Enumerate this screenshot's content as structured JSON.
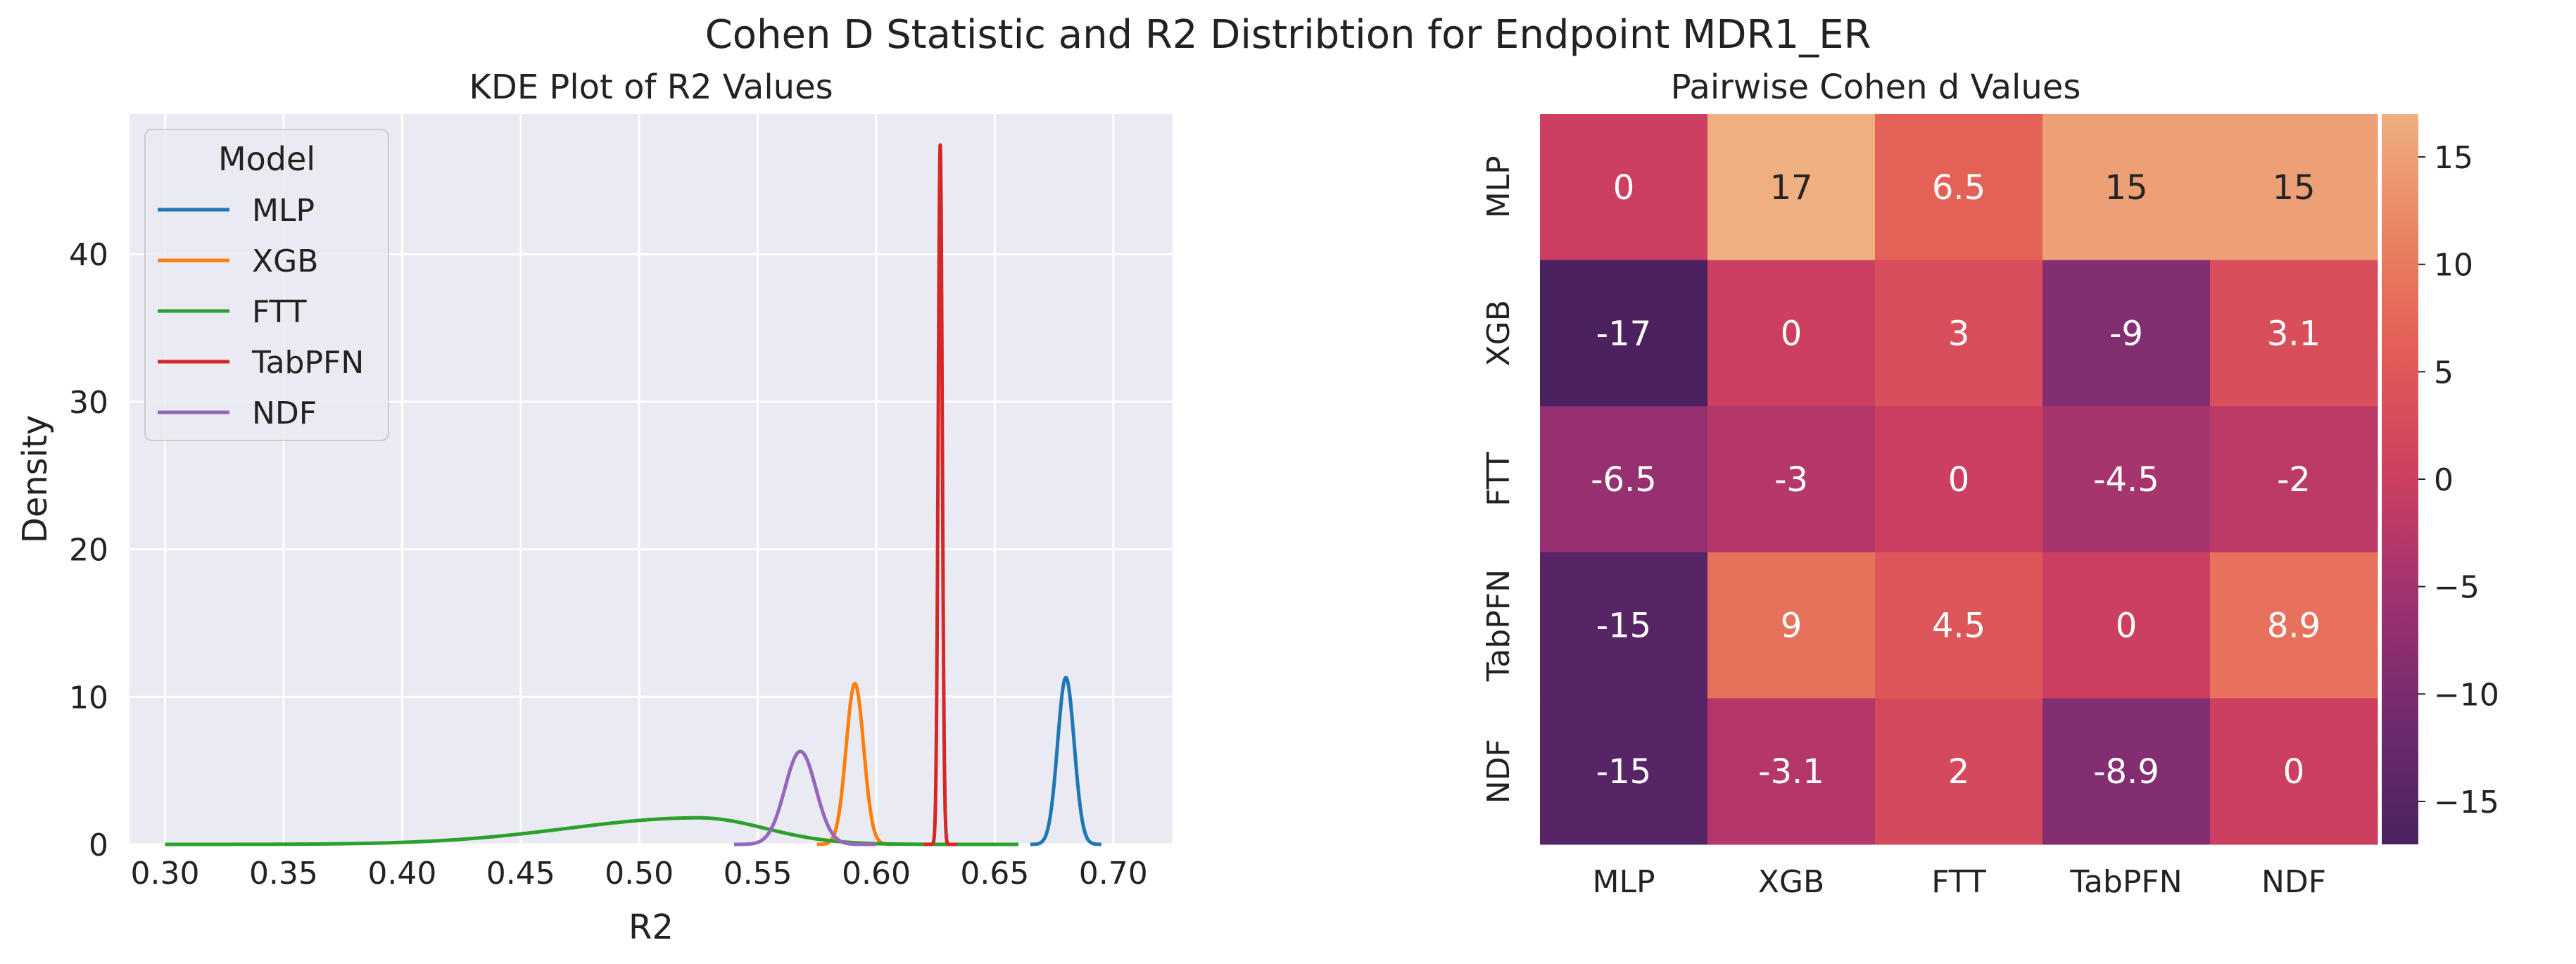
{
  "figure": {
    "title": "Cohen D Statistic and R2 Distribtion for Endpoint MDR1_ER"
  },
  "chart_data": [
    {
      "type": "line",
      "title": "KDE Plot of R2 Values",
      "xlabel": "R2",
      "ylabel": "Density",
      "xlim": [
        0.285,
        0.725
      ],
      "ylim": [
        0,
        49.5
      ],
      "xticks": [
        0.3,
        0.35,
        0.4,
        0.45,
        0.5,
        0.55,
        0.6,
        0.65,
        0.7
      ],
      "xtick_labels": [
        "0.30",
        "0.35",
        "0.40",
        "0.45",
        "0.50",
        "0.55",
        "0.60",
        "0.65",
        "0.70"
      ],
      "yticks": [
        0,
        10,
        20,
        30,
        40
      ],
      "ytick_labels": [
        "0",
        "10",
        "20",
        "30",
        "40"
      ],
      "grid": true,
      "background": "#eaeaf2",
      "legend": {
        "title": "Model",
        "placement": "top-left"
      },
      "series": [
        {
          "name": "MLP",
          "color": "#1f77b4",
          "curve": {
            "type": "gaussian",
            "mean": 0.68,
            "sd": 0.0035,
            "peak": 11.3,
            "min_x": 0.665,
            "max_x": 0.695
          }
        },
        {
          "name": "XGB",
          "color": "#ff7f0e",
          "curve": {
            "type": "gaussian",
            "mean": 0.591,
            "sd": 0.0037,
            "peak": 10.9,
            "min_x": 0.575,
            "max_x": 0.608
          }
        },
        {
          "name": "FTT",
          "color": "#2ca02c",
          "curve": {
            "type": "skew",
            "mode": 0.525,
            "sd_left": 0.055,
            "sd_right": 0.028,
            "peak": 1.8,
            "min_x": 0.3,
            "max_x": 0.66
          }
        },
        {
          "name": "TabPFN",
          "color": "#d62728",
          "curve": {
            "type": "gaussian",
            "mean": 0.627,
            "sd": 0.00085,
            "peak": 47.4,
            "min_x": 0.62,
            "max_x": 0.634
          }
        },
        {
          "name": "NDF",
          "color": "#9467bd",
          "curve": {
            "type": "gaussian",
            "mean": 0.568,
            "sd": 0.0065,
            "peak": 6.3,
            "min_x": 0.54,
            "max_x": 0.6
          }
        }
      ]
    },
    {
      "type": "heatmap",
      "title": "Pairwise Cohen d Values",
      "rows": [
        "MLP",
        "XGB",
        "FTT",
        "TabPFN",
        "NDF"
      ],
      "cols": [
        "MLP",
        "XGB",
        "FTT",
        "TabPFN",
        "NDF"
      ],
      "values": [
        [
          0,
          17,
          6.5,
          15,
          15
        ],
        [
          -17,
          0,
          3,
          -9,
          3.1
        ],
        [
          -6.5,
          -3,
          0,
          -4.5,
          -2
        ],
        [
          -15,
          9,
          4.5,
          0,
          8.9
        ],
        [
          -15,
          -3.1,
          2,
          -8.9,
          0
        ]
      ],
      "value_labels": [
        [
          "0",
          "17",
          "6.5",
          "15",
          "15"
        ],
        [
          "-17",
          "0",
          "3",
          "-9",
          "3.1"
        ],
        [
          "-6.5",
          "-3",
          "0",
          "-4.5",
          "-2"
        ],
        [
          "-15",
          "9",
          "4.5",
          "0",
          "8.9"
        ],
        [
          "-15",
          "-3.1",
          "2",
          "-8.9",
          "0"
        ]
      ],
      "colorbar": {
        "range": [
          -17,
          17
        ],
        "ticks": [
          15,
          10,
          5,
          0,
          -5,
          -10,
          -15
        ],
        "tick_labels": [
          "15",
          "10",
          "5",
          "0",
          "−5",
          "−10",
          "−15"
        ]
      },
      "colormap": "flare",
      "colormap_stops": [
        {
          "v": -17,
          "color": "#4b2160"
        },
        {
          "v": -12,
          "color": "#6a2a6e"
        },
        {
          "v": -6,
          "color": "#9b3171"
        },
        {
          "v": 0,
          "color": "#cc3f60"
        },
        {
          "v": 6,
          "color": "#e35d57"
        },
        {
          "v": 11,
          "color": "#ea8060"
        },
        {
          "v": 17,
          "color": "#efaf80"
        }
      ]
    }
  ]
}
